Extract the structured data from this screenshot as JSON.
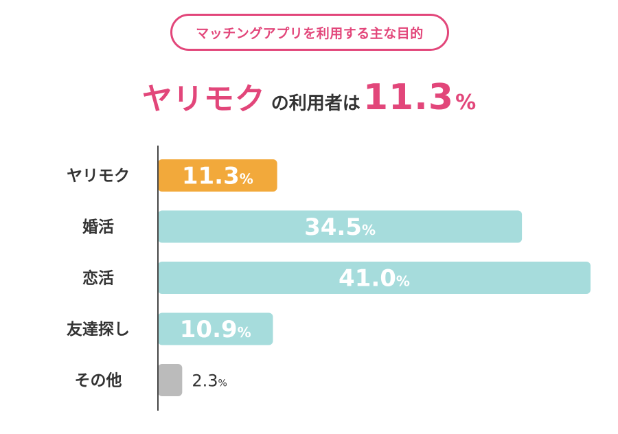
{
  "subtitle_pill": "マッチングアプリを利用する主な目的",
  "headline": {
    "emphasis": "ヤリモク",
    "middle": "の利用者は",
    "value": "11.3",
    "unit": "%"
  },
  "chart_data": {
    "type": "bar",
    "orientation": "horizontal",
    "categories": [
      "ヤリモク",
      "婚活",
      "恋活",
      "友達探し",
      "その他"
    ],
    "values": [
      11.3,
      34.5,
      41.0,
      10.9,
      2.3
    ],
    "value_labels": [
      "11.3",
      "34.5",
      "41.0",
      "10.9",
      "2.3"
    ],
    "unit": "%",
    "colors": [
      "#f2a93b",
      "#a6dcdc",
      "#a6dcdc",
      "#a6dcdc",
      "#bbbbbb"
    ],
    "xlim": [
      0,
      41.0
    ],
    "grid": false
  }
}
